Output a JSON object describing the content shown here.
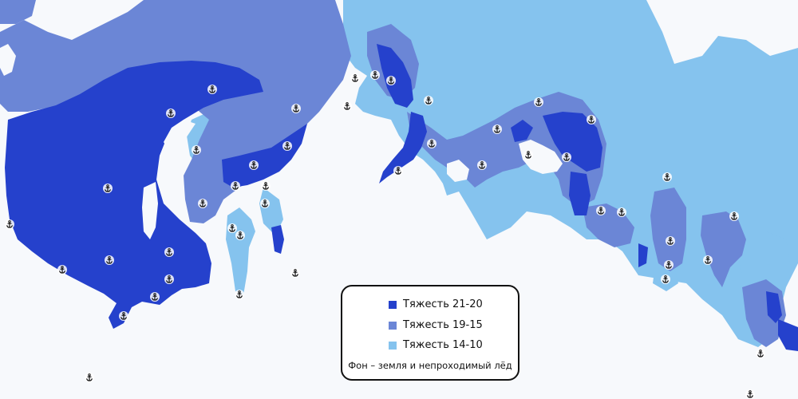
{
  "colors": {
    "background": "#f7f9fc",
    "severity_high": "#2541cc",
    "severity_mid": "#6b86d6",
    "severity_low": "#85c3ee",
    "anchor_icon": "#111111"
  },
  "legend": {
    "items": [
      {
        "label": "Тяжесть 21-20",
        "color": "#2541cc"
      },
      {
        "label": "Тяжесть 19-15",
        "color": "#6b86d6"
      },
      {
        "label": "Тяжесть 14-10",
        "color": "#85c3ee"
      }
    ],
    "note": "Фон – земля и непроходимый лёд"
  },
  "markers": {
    "icon": "anchor-icon"
  }
}
